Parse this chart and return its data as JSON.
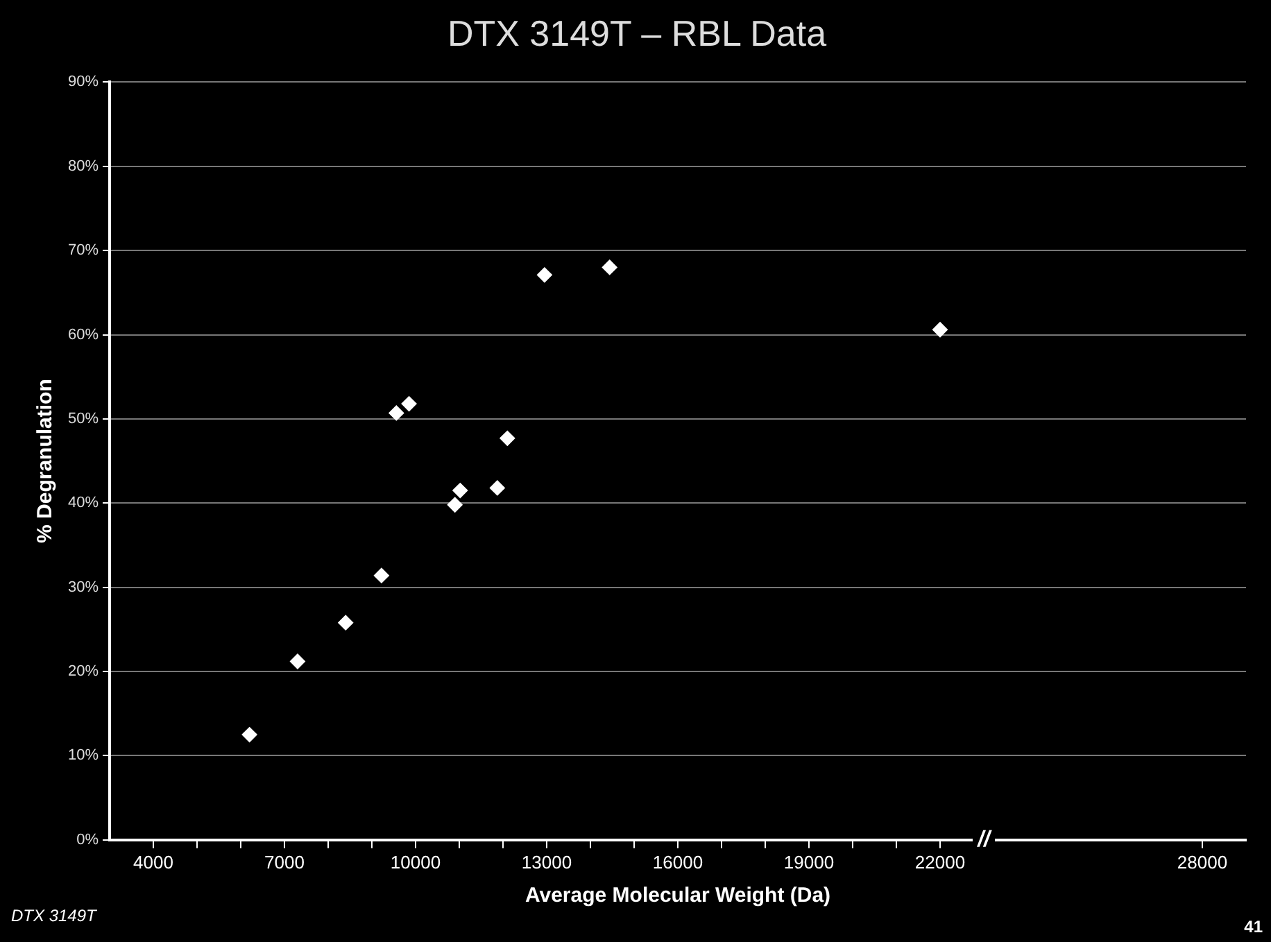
{
  "chart_data": {
    "type": "scatter",
    "title": "DTX 3149T – RBL Data",
    "xlabel": "Average Molecular Weight (Da)",
    "ylabel": "% Degranulation",
    "x": [
      6200,
      7300,
      8400,
      9220,
      9560,
      9850,
      10900,
      11020,
      11870,
      12100,
      12950,
      14440,
      22000
    ],
    "series": [
      {
        "color": "#ffffff",
        "values": [
          12.5,
          21.2,
          25.8,
          31.4,
          50.7,
          51.8,
          39.8,
          41.5,
          41.8,
          47.7,
          67.1,
          68.0,
          60.6
        ]
      }
    ],
    "marker": "diamond",
    "grid": "y",
    "legend": false,
    "xlim": [
      3000,
      29000
    ],
    "xticks": [
      4000,
      {
        "value": 5000,
        "label": null
      },
      {
        "value": 6000,
        "label": null
      },
      7000,
      {
        "value": 8000,
        "label": null
      },
      {
        "value": 9000,
        "label": null
      },
      10000,
      {
        "value": 11000,
        "label": null
      },
      {
        "value": 12000,
        "label": null
      },
      13000,
      {
        "value": 14000,
        "label": null
      },
      {
        "value": 15000,
        "label": null
      },
      16000,
      {
        "value": 17000,
        "label": null
      },
      {
        "value": 18000,
        "label": null
      },
      19000,
      {
        "value": 20000,
        "label": null
      },
      {
        "value": 21000,
        "label": null
      },
      22000,
      28000
    ],
    "ylim": [
      0,
      90
    ],
    "yticks": [
      {
        "value": 0,
        "label": "0%"
      },
      {
        "value": 10,
        "label": "10%"
      },
      {
        "value": 20,
        "label": "20%"
      },
      {
        "value": 30,
        "label": "30%"
      },
      {
        "value": 40,
        "label": "40%"
      },
      {
        "value": 50,
        "label": "50%"
      },
      {
        "value": 60,
        "label": "60%"
      },
      {
        "value": 70,
        "label": "70%"
      },
      {
        "value": 80,
        "label": "80%"
      },
      {
        "value": 90,
        "label": "90%"
      }
    ],
    "annotations": [
      {
        "text": "//",
        "x": 23000,
        "y": 0
      },
      "DTX 3149T",
      "41"
    ]
  }
}
